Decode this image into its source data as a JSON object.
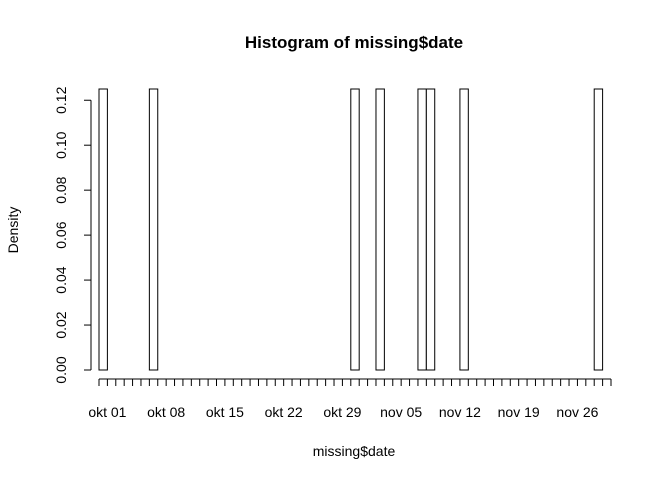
{
  "chart_data": {
    "type": "bar",
    "title": "Histogram of missing$date",
    "xlabel": "missing$date",
    "ylabel": "Density",
    "x_bin_start": "2023-09-30",
    "x_bin_width_days": 1,
    "x_bin_count": 61,
    "x_ticks": [
      "okt 01",
      "okt 08",
      "okt 15",
      "okt 22",
      "okt 29",
      "nov 05",
      "nov 12",
      "nov 19",
      "nov 26"
    ],
    "y_ticks": [
      "0.00",
      "0.02",
      "0.04",
      "0.06",
      "0.08",
      "0.10",
      "0.12"
    ],
    "ylim": [
      0,
      0.125
    ],
    "bars": [
      {
        "date": "2023-09-30",
        "density": 0.125
      },
      {
        "date": "2023-10-06",
        "density": 0.125
      },
      {
        "date": "2023-10-30",
        "density": 0.125
      },
      {
        "date": "2023-11-02",
        "density": 0.125
      },
      {
        "date": "2023-11-07",
        "density": 0.125
      },
      {
        "date": "2023-11-08",
        "density": 0.125
      },
      {
        "date": "2023-11-12",
        "density": 0.125
      },
      {
        "date": "2023-11-28",
        "density": 0.125
      }
    ]
  }
}
